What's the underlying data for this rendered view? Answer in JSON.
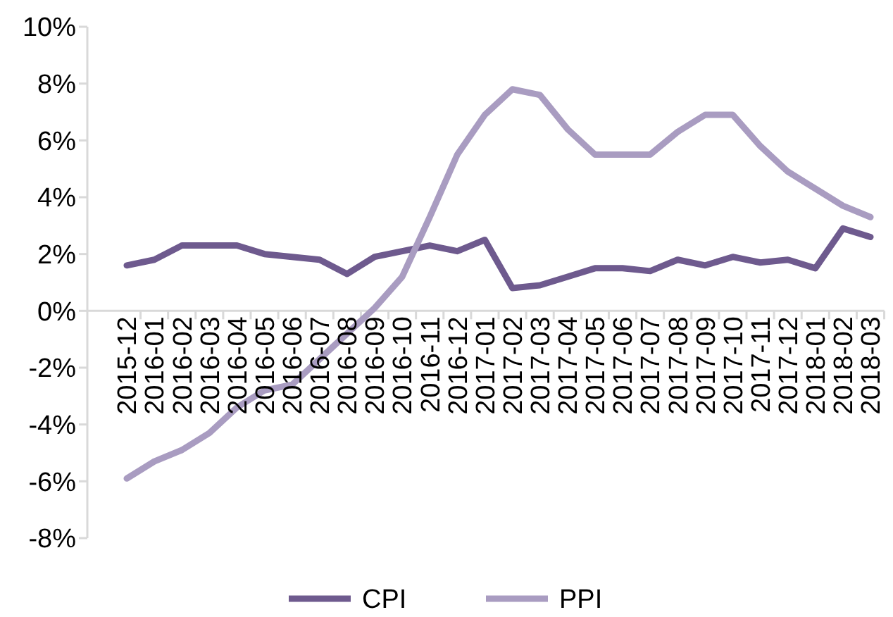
{
  "chart_data": {
    "type": "line",
    "categories": [
      "2015-12",
      "2016-01",
      "2016-02",
      "2016-03",
      "2016-04",
      "2016-05",
      "2016-06",
      "2016-07",
      "2016-08",
      "2016-09",
      "2016-10",
      "2016-11",
      "2016-12",
      "2017-01",
      "2017-02",
      "2017-03",
      "2017-04",
      "2017-05",
      "2017-06",
      "2017-07",
      "2017-08",
      "2017-09",
      "2017-10",
      "2017-11",
      "2017-12",
      "2018-01",
      "2018-02",
      "2018-03"
    ],
    "series": [
      {
        "name": "CPI",
        "color": "#6e5a8e",
        "values": [
          1.6,
          1.8,
          2.3,
          2.3,
          2.3,
          2.0,
          1.9,
          1.8,
          1.3,
          1.9,
          2.1,
          2.3,
          2.1,
          2.5,
          0.8,
          0.9,
          1.2,
          1.5,
          1.5,
          1.4,
          1.8,
          1.6,
          1.9,
          1.7,
          1.8,
          1.5,
          2.9,
          2.6
        ]
      },
      {
        "name": "PPI",
        "color": "#a99cc1",
        "values": [
          -5.9,
          -5.3,
          -4.9,
          -4.3,
          -3.4,
          -2.8,
          -2.6,
          -1.7,
          -0.8,
          0.1,
          1.2,
          3.3,
          5.5,
          6.9,
          7.8,
          7.6,
          6.4,
          5.5,
          5.5,
          5.5,
          6.3,
          6.9,
          6.9,
          5.8,
          4.9,
          4.3,
          3.7,
          3.3
        ]
      }
    ],
    "ylim": [
      -8,
      10
    ],
    "yticks": [
      {
        "value": -8,
        "label": "-8%"
      },
      {
        "value": -6,
        "label": "-6%"
      },
      {
        "value": -4,
        "label": "-4%"
      },
      {
        "value": -2,
        "label": "-2%"
      },
      {
        "value": 0,
        "label": "0%"
      },
      {
        "value": 2,
        "label": "2%"
      },
      {
        "value": 4,
        "label": "4%"
      },
      {
        "value": 6,
        "label": "6%"
      },
      {
        "value": 8,
        "label": "8%"
      },
      {
        "value": 10,
        "label": "10%"
      }
    ],
    "grid": false,
    "legend": "bottom",
    "marker": "none",
    "line_style": "solid"
  }
}
